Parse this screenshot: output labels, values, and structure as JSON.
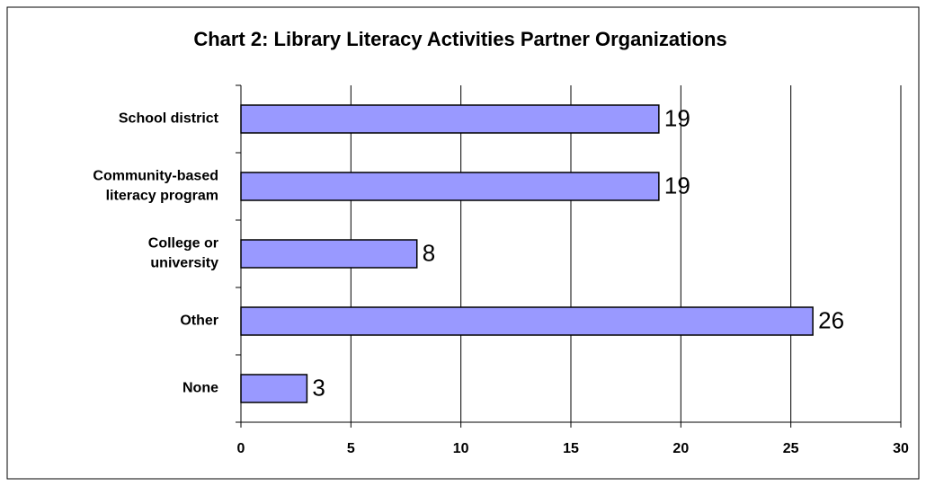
{
  "chart_data": {
    "type": "hbar",
    "title": "Chart 2: Library Literacy Activities Partner Organizations",
    "categories": [
      "School district",
      "Community-based\nliteracy program",
      "College or\nuniversity",
      "Other",
      "None"
    ],
    "values": [
      19,
      19,
      8,
      26,
      3
    ],
    "color": "#9999ff",
    "xlim": [
      0,
      30
    ],
    "xticks": [
      0,
      5,
      10,
      15,
      20,
      25,
      30
    ],
    "grid": true
  }
}
